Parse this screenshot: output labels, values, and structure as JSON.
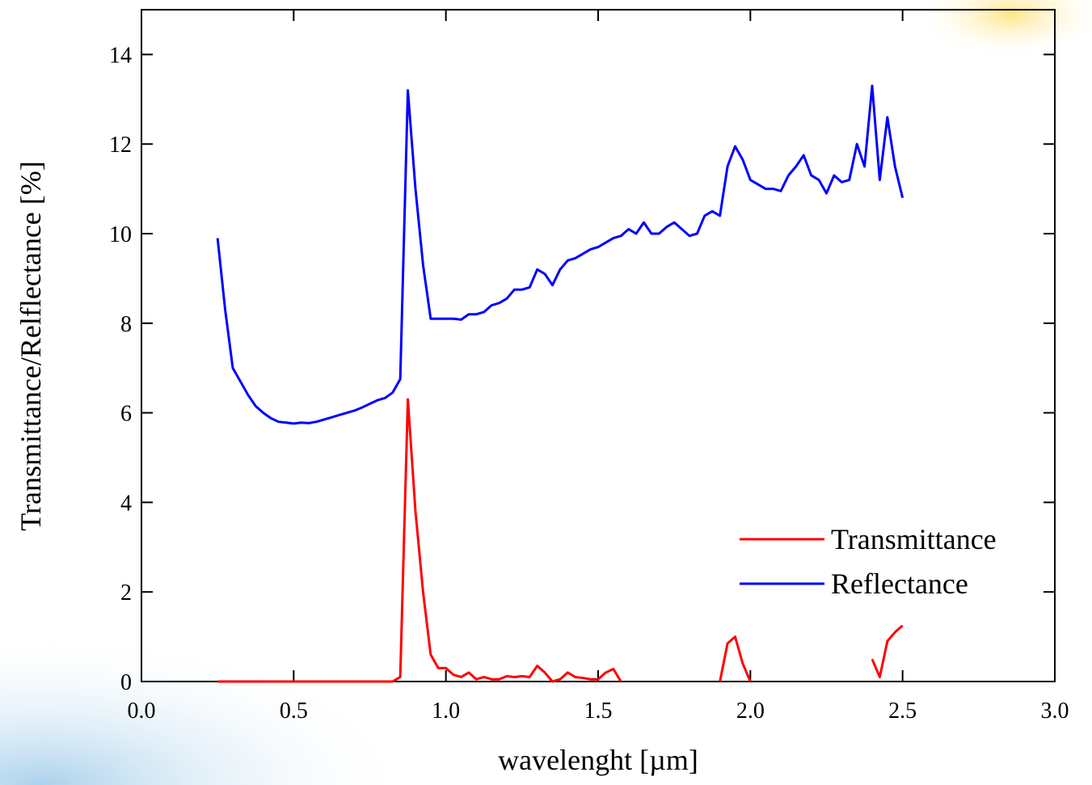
{
  "chart_data": {
    "type": "line",
    "xlabel": "wavelenght [µm]",
    "ylabel": "Transmittance/Relflectance [%]",
    "xlim": [
      0,
      3
    ],
    "ylim": [
      0,
      15
    ],
    "xticks": [
      {
        "value": 0,
        "label": "0.0"
      },
      0.5,
      {
        "value": 1,
        "label": "1.0"
      },
      1.5,
      {
        "value": 2,
        "label": "2.0"
      },
      2.5,
      {
        "value": 3,
        "label": "3.0"
      }
    ],
    "yticks": [
      0,
      2,
      4,
      6,
      8,
      10,
      12,
      14
    ],
    "legend": "lower right",
    "x": [
      0.25,
      0.275,
      0.3,
      0.325,
      0.35,
      0.375,
      0.4,
      0.425,
      0.45,
      0.475,
      0.5,
      0.525,
      0.55,
      0.575,
      0.6,
      0.625,
      0.65,
      0.675,
      0.7,
      0.725,
      0.75,
      0.775,
      0.8,
      0.825,
      0.85,
      0.875,
      0.9,
      0.925,
      0.95,
      0.975,
      1.0,
      1.025,
      1.05,
      1.075,
      1.1,
      1.125,
      1.15,
      1.175,
      1.2,
      1.225,
      1.25,
      1.275,
      1.3,
      1.325,
      1.35,
      1.375,
      1.4,
      1.425,
      1.45,
      1.475,
      1.5,
      1.525,
      1.55,
      1.575,
      1.6,
      1.625,
      1.65,
      1.675,
      1.7,
      1.725,
      1.75,
      1.775,
      1.8,
      1.825,
      1.85,
      1.875,
      1.9,
      1.925,
      1.95,
      1.975,
      2.0,
      2.025,
      2.05,
      2.075,
      2.1,
      2.125,
      2.15,
      2.175,
      2.2,
      2.225,
      2.25,
      2.275,
      2.3,
      2.325,
      2.35,
      2.375,
      2.4,
      2.425,
      2.45,
      2.475,
      2.5
    ],
    "series": [
      {
        "name": "Transmittance",
        "color": "#ff0000",
        "values": [
          0,
          0,
          0,
          0,
          0,
          0,
          0,
          0,
          0,
          0,
          0,
          0,
          0,
          0,
          0,
          0,
          0,
          0,
          0,
          0,
          0,
          0,
          0,
          0,
          0.1,
          6.3,
          3.8,
          2.0,
          0.6,
          0.3,
          0.3,
          0.15,
          0.1,
          0.2,
          0.05,
          0.1,
          0.05,
          0.05,
          0.12,
          0.1,
          0.12,
          0.1,
          0.35,
          0.2,
          0,
          0.05,
          0.2,
          0.1,
          0.08,
          0.05,
          0.05,
          0.2,
          0.28,
          0,
          null,
          null,
          null,
          null,
          null,
          null,
          null,
          null,
          null,
          null,
          null,
          null,
          0,
          0.85,
          1.0,
          0.4,
          0,
          null,
          null,
          null,
          null,
          null,
          null,
          null,
          null,
          null,
          null,
          null,
          null,
          null,
          null,
          null,
          0.5,
          0.1,
          0.9,
          1.1,
          1.25
        ]
      },
      {
        "name": "Reflectance",
        "color": "#0000ff",
        "values": [
          9.9,
          8.3,
          7.0,
          6.7,
          6.4,
          6.15,
          6.0,
          5.88,
          5.8,
          5.78,
          5.76,
          5.78,
          5.77,
          5.8,
          5.85,
          5.9,
          5.95,
          6.0,
          6.05,
          6.12,
          6.2,
          6.28,
          6.33,
          6.45,
          6.75,
          13.2,
          11.0,
          9.3,
          8.1,
          8.1,
          8.1,
          8.1,
          8.08,
          8.2,
          8.2,
          8.25,
          8.4,
          8.45,
          8.55,
          8.75,
          8.75,
          8.8,
          9.2,
          9.1,
          8.85,
          9.2,
          9.4,
          9.45,
          9.55,
          9.65,
          9.7,
          9.8,
          9.9,
          9.95,
          10.1,
          10.0,
          10.25,
          10.0,
          10.0,
          10.15,
          10.25,
          10.1,
          9.95,
          10.0,
          10.4,
          10.5,
          10.4,
          11.5,
          11.95,
          11.65,
          11.2,
          11.1,
          11.0,
          11.0,
          10.95,
          11.3,
          11.5,
          11.75,
          11.3,
          11.2,
          10.9,
          11.3,
          11.15,
          11.2,
          12.0,
          11.5,
          13.3,
          11.2,
          12.6,
          11.5,
          10.8
        ]
      }
    ]
  }
}
